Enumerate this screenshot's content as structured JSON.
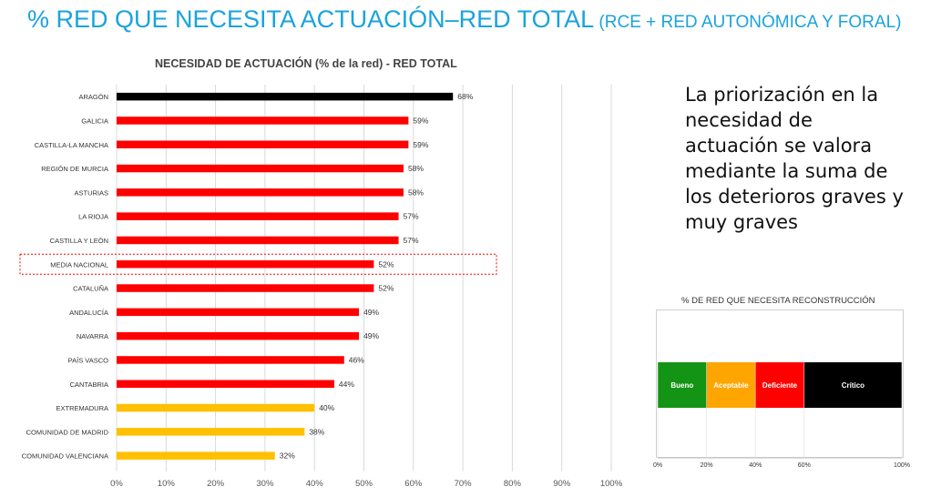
{
  "header": {
    "title_main": "% RED QUE NECESITA ACTUACIÓN–RED TOTAL",
    "title_sub": " (RCE + RED AUTONÓMICA Y FORAL)"
  },
  "note": {
    "text": "La priorización en la necesidad de actuación se valora mediante la suma de los deterioros graves y muy graves"
  },
  "colors": {
    "highlight": "#000000",
    "red": "#ff0000",
    "yellow": "#ffc000",
    "title_blue": "#1aa3dd",
    "bueno": "#149414",
    "aceptable": "#ffa500",
    "deficiente": "#ff0000",
    "critico": "#000000"
  },
  "chart_data": [
    {
      "type": "bar",
      "orientation": "horizontal",
      "title": "NECESIDAD DE ACTUACIÓN (% de la red)  - RED TOTAL",
      "categories": [
        "ARAGÓN",
        "GALICIA",
        "CASTILLA-LA MANCHA",
        "REGIÓN DE MURCIA",
        "ASTURIAS",
        "LA RIOJA",
        "CASTILLA Y LEÓN",
        "MEDIA NACIONAL",
        "CATALUÑA",
        "ANDALUCÍA",
        "NAVARRA",
        "PAÍS VASCO",
        "CANTABRIA",
        "EXTREMADURA",
        "COMUNIDAD DE MADRID",
        "COMUNIDAD VALENCIANA"
      ],
      "values": [
        68,
        59,
        59,
        58,
        58,
        57,
        57,
        52,
        52,
        49,
        49,
        46,
        44,
        40,
        38,
        32
      ],
      "value_labels": [
        "68%",
        "59%",
        "59%",
        "58%",
        "58%",
        "57%",
        "57%",
        "52%",
        "52%",
        "49%",
        "49%",
        "46%",
        "44%",
        "40%",
        "38%",
        "32%"
      ],
      "bar_colors": [
        "#000000",
        "#ff0000",
        "#ff0000",
        "#ff0000",
        "#ff0000",
        "#ff0000",
        "#ff0000",
        "#ff0000",
        "#ff0000",
        "#ff0000",
        "#ff0000",
        "#ff0000",
        "#ff0000",
        "#ffc000",
        "#ffc000",
        "#ffc000"
      ],
      "highlighted_category": "MEDIA NACIONAL",
      "xlim": [
        0,
        100
      ],
      "x_ticks": [
        "0%",
        "10%",
        "20%",
        "30%",
        "40%",
        "50%",
        "60%",
        "70%",
        "80%",
        "90%",
        "100%"
      ],
      "grid": "vertical"
    },
    {
      "type": "bar",
      "orientation": "horizontal-stacked",
      "title": "% DE RED QUE NECESITA RECONSTRUCCIÓN",
      "segments": [
        {
          "label": "Bueno",
          "start": 0,
          "end": 20,
          "color": "#149414",
          "text_color": "#ffffff"
        },
        {
          "label": "Aceptable",
          "start": 20,
          "end": 40,
          "color": "#ffa500",
          "text_color": "#ffffff"
        },
        {
          "label": "Deficiente",
          "start": 40,
          "end": 60,
          "color": "#ff0000",
          "text_color": "#ffffff"
        },
        {
          "label": "Crítico",
          "start": 60,
          "end": 100,
          "color": "#000000",
          "text_color": "#ffffff"
        }
      ],
      "xlim": [
        0,
        100
      ],
      "x_ticks": [
        "0%",
        "20%",
        "40%",
        "60%",
        "100%"
      ],
      "x_tick_values": [
        0,
        20,
        40,
        60,
        100
      ]
    }
  ]
}
